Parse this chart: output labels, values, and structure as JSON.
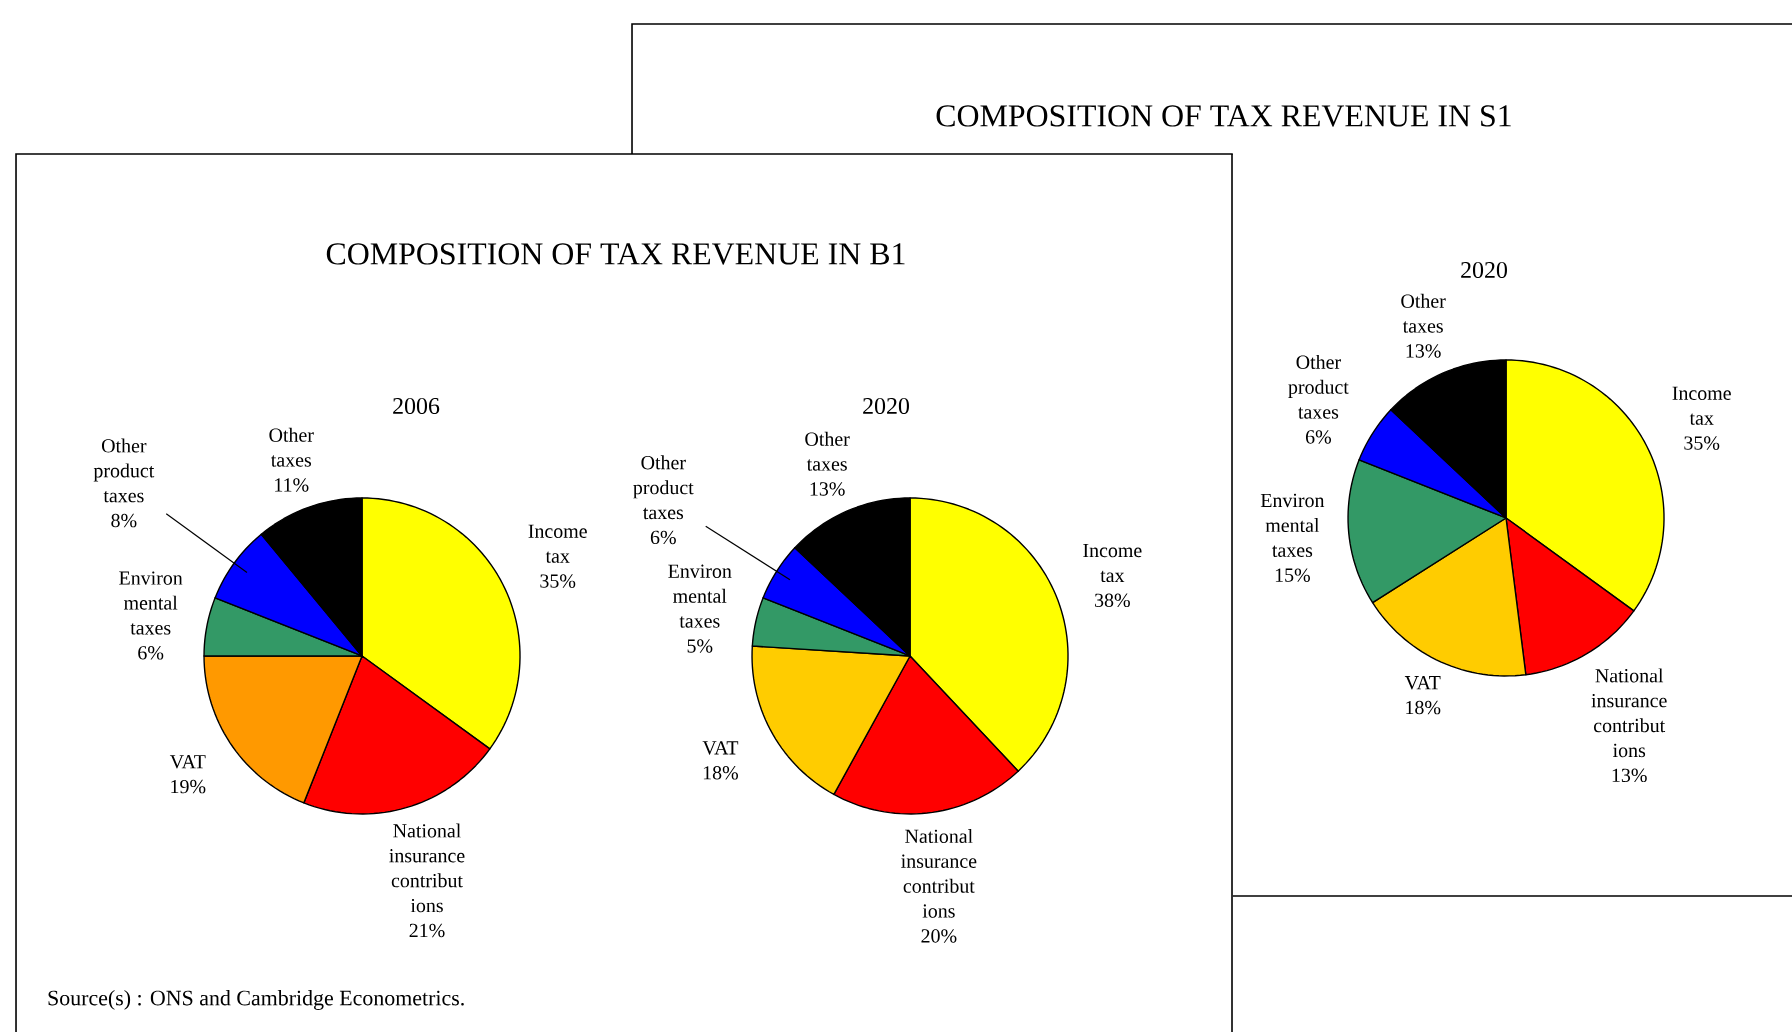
{
  "chart_data": [
    {
      "type": "other",
      "title": "COMPOSITION OF TAX REVENUE IN S1"
    },
    {
      "type": "pie",
      "title": "2020",
      "categories": [
        "Income tax",
        "National insurance contribut ions",
        "VAT",
        "Environ mental taxes",
        "Other product taxes",
        "Other taxes"
      ],
      "values": [
        35,
        13,
        18,
        15,
        6,
        13
      ],
      "colors": [
        "#ffff00",
        "#ff0000",
        "#ffcc00",
        "#339966",
        "#0000ff",
        "#000000"
      ],
      "value_labels": [
        "35%",
        "13%",
        "18%",
        "15%",
        "6%",
        "13%"
      ]
    },
    {
      "type": "other",
      "title": "COMPOSITION OF TAX REVENUE IN B1",
      "annotations": [
        "Source(s) : ONS and Cambridge Econometrics."
      ]
    },
    {
      "type": "pie",
      "title": "2006",
      "categories": [
        "Income tax",
        "National insurance contribut ions",
        "VAT",
        "Environ mental taxes",
        "Other product taxes",
        "Other taxes"
      ],
      "values": [
        35,
        21,
        19,
        6,
        8,
        11
      ],
      "colors": [
        "#ffff00",
        "#ff0000",
        "#ff9900",
        "#339966",
        "#0000ff",
        "#000000"
      ],
      "value_labels": [
        "35%",
        "21%",
        "19%",
        "6%",
        "8%",
        "11%"
      ]
    },
    {
      "type": "pie",
      "title": "2020",
      "categories": [
        "Income tax",
        "National insurance contribut ions",
        "VAT",
        "Environ mental taxes",
        "Other product taxes",
        "Other taxes"
      ],
      "values": [
        38,
        20,
        18,
        5,
        6,
        13
      ],
      "colors": [
        "#ffff00",
        "#ff0000",
        "#ffcc00",
        "#339966",
        "#0000ff",
        "#000000"
      ],
      "value_labels": [
        "38%",
        "20%",
        "18%",
        "5%",
        "6%",
        "13%"
      ]
    }
  ]
}
